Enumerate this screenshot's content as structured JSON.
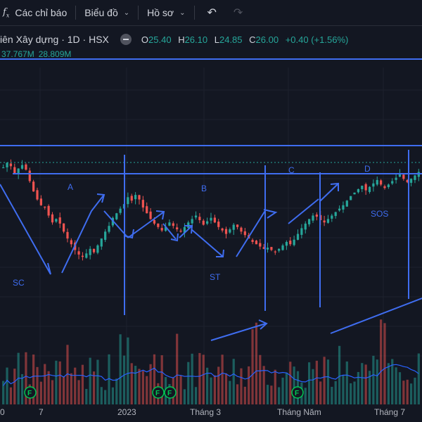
{
  "toolbar": {
    "indicators_label": "Các chỉ báo",
    "chart_type_label": "Biểu đồ",
    "profile_label": "Hồ sơ",
    "fx_icon": "fx-indicators-icon",
    "undo_icon": "undo-icon",
    "redo_icon": "redo-icon"
  },
  "legend": {
    "symbol_title": "iên Xây dựng · 1D · HSX",
    "o_label": "O",
    "o_value": "25.40",
    "h_label": "H",
    "h_value": "26.10",
    "l_label": "L",
    "l_value": "24.85",
    "c_label": "C",
    "c_value": "26.00",
    "change": "+0.40 (+1.56%)"
  },
  "volume_legend": {
    "v1": "37.767M",
    "v2": "28.809M"
  },
  "annotations": {
    "sc": "SC",
    "a": "A",
    "b": "B",
    "st": "ST",
    "c": "C",
    "d": "D",
    "sos": "SOS"
  },
  "events": {
    "marker": "F"
  },
  "xaxis": {
    "t0": "0",
    "t1": "7",
    "t2": "2023",
    "t3": "Tháng 3",
    "t4": "Tháng Năm",
    "t5": "Tháng 7"
  },
  "colors": {
    "up": "#26a69a",
    "down": "#ef5350",
    "drawing": "#3f6df0",
    "bg": "#131722",
    "volume_ma": "#2962ff"
  },
  "chart_data": {
    "type": "candlestick",
    "series": [
      {
        "name": "",
        "close": [
          26.4,
          26.8,
          26.5,
          25.9,
          26.3,
          26.6,
          26.2,
          25.2,
          24.3,
          23.6,
          23.1,
          22.9,
          22.2,
          21.6,
          21.9,
          21.5,
          20.8,
          20.2,
          19.7,
          19.2,
          18.8,
          18.6,
          18.9,
          19.3,
          19.0,
          19.6,
          20.2,
          20.8,
          21.3,
          22.0,
          22.4,
          22.8,
          23.2,
          23.8,
          23.5,
          24.0,
          23.6,
          22.9,
          22.4,
          21.9,
          21.5,
          21.2,
          20.9,
          21.2,
          21.6,
          21.3,
          21.0,
          20.8,
          21.2,
          21.6,
          21.9,
          22.2,
          21.8,
          21.4,
          21.7,
          22.0,
          21.6,
          21.2,
          20.9,
          20.6,
          21.0,
          21.4,
          21.2,
          20.8,
          20.5,
          20.2,
          19.9,
          19.7,
          19.5,
          19.3,
          19.4,
          19.2,
          19.0,
          19.3,
          19.6,
          19.9,
          19.7,
          20.1,
          20.6,
          21.1,
          21.5,
          21.9,
          22.2,
          22.1,
          21.8,
          21.6,
          21.9,
          22.2,
          22.5,
          22.8,
          23.1,
          23.5,
          23.9,
          24.2,
          24.5,
          24.8,
          24.4,
          24.7,
          25.0,
          25.3,
          24.9,
          24.6,
          24.9,
          25.2,
          25.5,
          25.8,
          25.4,
          25.1,
          25.4,
          25.7,
          26.0
        ],
        "volume_ma_visible": true
      }
    ],
    "notes": "Wyckoff accumulation drawing: phases SC, A, B, ST, C, D, SOS with support/resistance lines and trend arrows."
  }
}
